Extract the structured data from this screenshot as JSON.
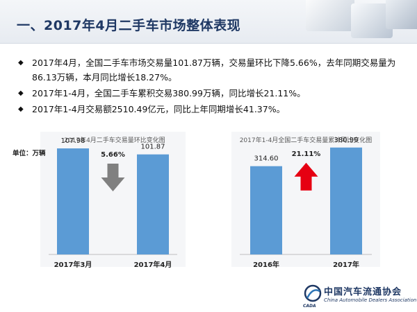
{
  "header": {
    "title": "一、2017年4月二手车市场整体表现"
  },
  "bullets": [
    "2017年4月，全国二手车市场交易量101.87万辆，交易量环比下降5.66%，去年同期交易量为86.13万辆，本月同比增长18.27%。",
    "2017年1-4月，全国二手车累积交易380.99万辆，同比增长21.11%。",
    "2017年1-4月交易额2510.49亿元，同比上年同期增长41.37%。"
  ],
  "colors": {
    "bar": "#5b9bd5",
    "arrow_down": "#808080",
    "arrow_up": "#e60012",
    "title": "#1f3864"
  },
  "chart_data": [
    {
      "type": "bar",
      "title": "2017年4月二手车交易量环比变化图",
      "unit_label": "单位：万辆",
      "categories": [
        "2017年3月",
        "2017年4月"
      ],
      "values": [
        107.98,
        101.87
      ],
      "value_labels": [
        "107.98",
        "101.87"
      ],
      "change_label": "5.66%",
      "change_direction": "down",
      "ylim": [
        0,
        120
      ],
      "grid": false
    },
    {
      "type": "bar",
      "title": "2017年1-4月全国二手车交易量累计同比变化图",
      "categories": [
        "2016年",
        "2017年"
      ],
      "values": [
        314.6,
        380.99
      ],
      "value_labels": [
        "314.60",
        "380.99"
      ],
      "change_label": "21.11%",
      "change_direction": "up",
      "ylim": [
        0,
        420
      ],
      "grid": false
    }
  ],
  "logo": {
    "name_cn": "中国汽车流通协会",
    "name_en": "China Automobile Dealers Association",
    "abbr": "CADA"
  }
}
